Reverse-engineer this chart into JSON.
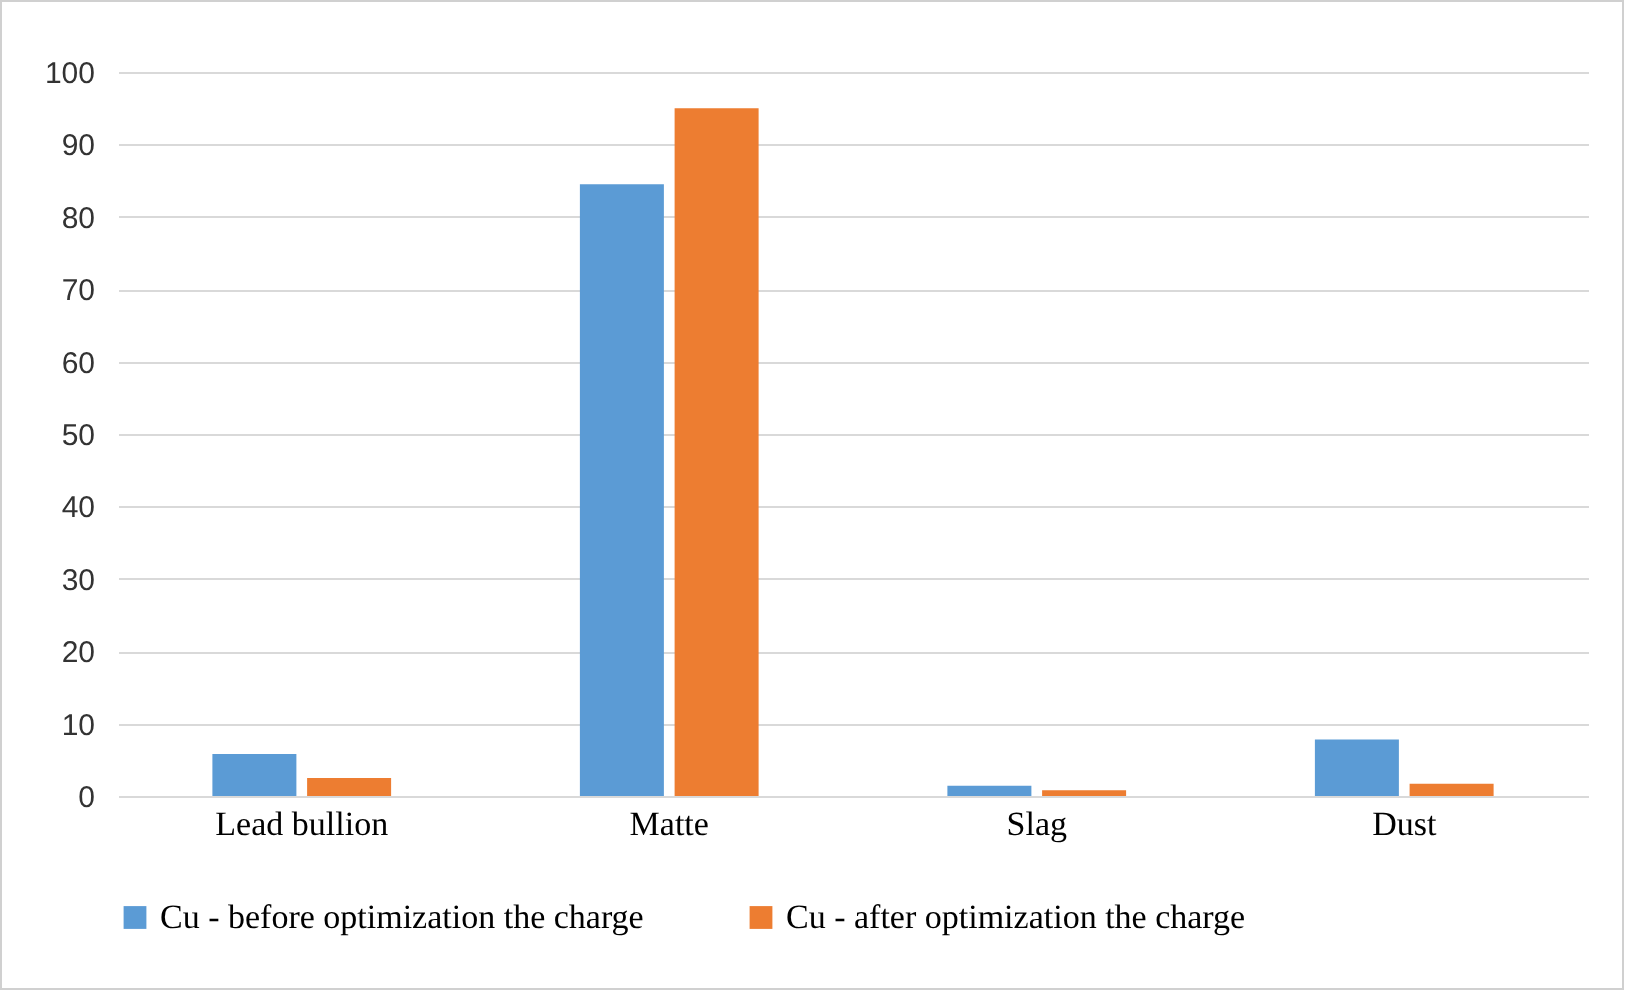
{
  "chart_data": {
    "type": "bar",
    "categories": [
      "Lead bullion",
      "Matte",
      "Slag",
      "Dust"
    ],
    "series": [
      {
        "name": "Cu - before optimization the charge",
        "color": "#5b9bd5",
        "values": [
          5.8,
          84.5,
          1.4,
          7.8
        ]
      },
      {
        "name": "Cu - after optimization the charge",
        "color": "#ed7d31",
        "values": [
          2.5,
          95.0,
          0.8,
          1.7
        ]
      }
    ],
    "ylim": [
      0,
      100
    ],
    "yticks": [
      0,
      10,
      20,
      30,
      40,
      50,
      60,
      70,
      80,
      90,
      100
    ],
    "grid": "y",
    "legend": "bottom"
  }
}
